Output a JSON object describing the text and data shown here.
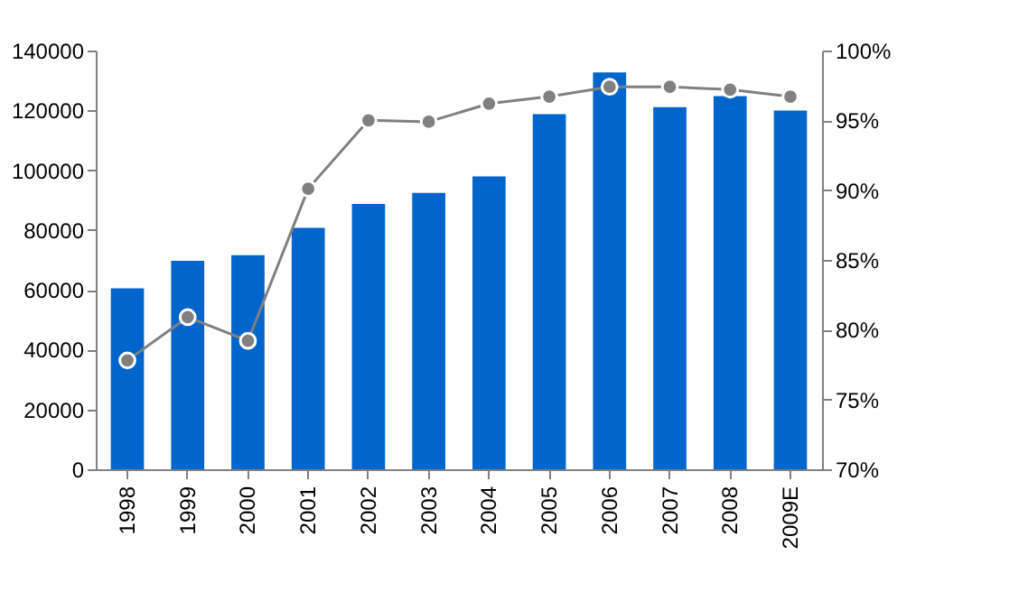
{
  "chart_data": {
    "type": "bar",
    "categories": [
      "1998",
      "1999",
      "2000",
      "2001",
      "2002",
      "2003",
      "2004",
      "2005",
      "2006",
      "2007",
      "2008",
      "2009E"
    ],
    "series": [
      {
        "color": "#0066cc",
        "values": [
          60500,
          69700,
          71600,
          80700,
          88700,
          92400,
          97900,
          118700,
          132700,
          121100,
          124800,
          119900
        ]
      },
      {
        "type": "line",
        "axis": "y2",
        "color": "#808080",
        "marker": "circle",
        "values": [
          77.8,
          80.9,
          79.2,
          90.1,
          95.0,
          94.9,
          96.2,
          96.7,
          97.4,
          97.4,
          97.2,
          96.7
        ]
      }
    ],
    "ylim": [
      0,
      140000
    ],
    "yticks": [
      0,
      20000,
      40000,
      60000,
      80000,
      100000,
      120000,
      140000
    ],
    "y2lim": [
      70,
      100
    ],
    "y2ticks": [
      {
        "value": 70,
        "label": "70%"
      },
      {
        "value": 75,
        "label": "75%"
      },
      {
        "value": 80,
        "label": "80%"
      },
      {
        "value": 85,
        "label": "85%"
      },
      {
        "value": 90,
        "label": "90%"
      },
      {
        "value": 95,
        "label": "95%"
      },
      {
        "value": 100,
        "label": "100%"
      }
    ],
    "grid": false
  }
}
